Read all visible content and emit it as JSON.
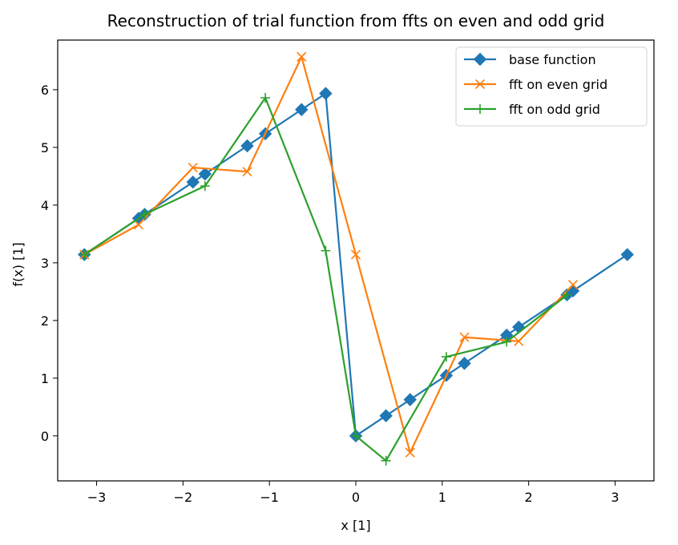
{
  "chart_data": {
    "type": "line",
    "title": "Reconstruction of trial function from ffts on even and odd grid",
    "xlabel": "x [1]",
    "ylabel": "f(x) [1]",
    "xlim": [
      -3.45,
      3.45
    ],
    "ylim": [
      -0.78,
      6.86
    ],
    "xticks": [
      -3,
      -2,
      -1,
      0,
      1,
      2,
      3
    ],
    "yticks": [
      0,
      1,
      2,
      3,
      4,
      5,
      6
    ],
    "xtick_labels": [
      "−3",
      "−2",
      "−1",
      "0",
      "1",
      "2",
      "3"
    ],
    "ytick_labels": [
      "0",
      "1",
      "2",
      "3",
      "4",
      "5",
      "6"
    ],
    "legend_position": "top-right",
    "grid": false,
    "series": [
      {
        "name": "base function",
        "color": "#1f77b4",
        "marker": "diamond",
        "x": [
          -3.1416,
          -2.5133,
          -2.4435,
          -1.885,
          -1.7453,
          -1.2566,
          -1.0472,
          -0.6283,
          -0.3491,
          0.0,
          0.3491,
          0.6283,
          1.0472,
          1.2566,
          1.7453,
          1.885,
          2.4435,
          2.5133,
          3.1416
        ],
        "y": [
          3.1416,
          3.7699,
          3.8397,
          4.3982,
          4.5379,
          5.0265,
          5.236,
          5.6549,
          5.9341,
          0.0,
          0.3491,
          0.6283,
          1.0472,
          1.2566,
          1.7453,
          1.885,
          2.4435,
          2.5133,
          3.1416
        ]
      },
      {
        "name": "fft on even grid",
        "color": "#ff7f0e",
        "marker": "x",
        "x": [
          -3.1416,
          -2.5133,
          -1.885,
          -1.2566,
          -0.6283,
          0.0,
          0.6283,
          1.2566,
          1.885,
          2.5133
        ],
        "y": [
          3.1416,
          3.66,
          4.65,
          4.58,
          6.57,
          3.1416,
          -0.29,
          1.71,
          1.64,
          2.62
        ]
      },
      {
        "name": "fft on odd grid",
        "color": "#2ca02c",
        "marker": "plus",
        "x": [
          -3.1416,
          -2.4435,
          -1.7453,
          -1.0472,
          -0.3491,
          0.0,
          0.3491,
          1.0472,
          1.7453,
          2.4435
        ],
        "y": [
          3.1416,
          3.84,
          4.33,
          5.86,
          3.21,
          0.0,
          -0.43,
          1.37,
          1.63,
          2.44
        ]
      }
    ],
    "legend_extra_points": [
      {
        "series": 1,
        "x": 0.3491,
        "y": 0.35
      },
      {
        "series": 1,
        "x": 3.1416,
        "y": 3.1416
      },
      {
        "series": 2,
        "x": 0.6283,
        "y": 0.63
      },
      {
        "series": 2,
        "x": 3.1416,
        "y": 3.1416
      }
    ]
  }
}
